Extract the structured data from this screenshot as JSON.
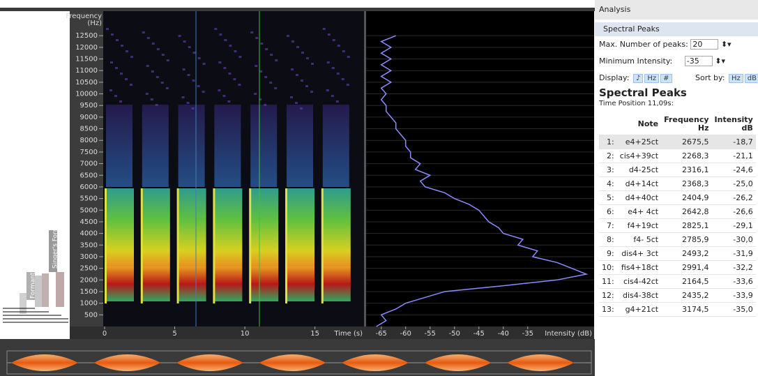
{
  "chart_data": [
    {
      "type": "spectrogram",
      "y_label": "Frequency",
      "y_unit": "(Hz)",
      "x_label": "Time (s)",
      "ylim": [
        0,
        13555
      ],
      "yticks": [
        500,
        1000,
        1500,
        2000,
        2500,
        3000,
        3500,
        4000,
        4500,
        5000,
        5500,
        6000,
        6500,
        7000,
        7500,
        8000,
        8500,
        9000,
        9500,
        10000,
        10500,
        11000,
        11500,
        12000,
        12500
      ],
      "xlim": [
        -0.1,
        18.5
      ],
      "xticks": [
        0,
        5,
        10,
        15
      ],
      "annotations": [
        "Singer's Formant",
        "Formant"
      ]
    },
    {
      "type": "line",
      "x_label": "Intensity (dB)",
      "orientation": "vertical",
      "xlim": [
        -68.1,
        -21.4
      ],
      "xticks": [
        -65,
        -60,
        -55,
        -50,
        -45,
        -40,
        -35
      ],
      "ylim": [
        0,
        13555
      ],
      "grid": true,
      "series": [
        {
          "color": "#8c8cff",
          "frequencies": [
            0,
            250,
            500,
            750,
            1000,
            1250,
            1500,
            1750,
            2000,
            2250,
            2500,
            2750,
            3000,
            3250,
            3500,
            3750,
            4000,
            4250,
            4500,
            4750,
            5000,
            5250,
            5500,
            5750,
            6000,
            6250,
            6500,
            6750,
            7000,
            7250,
            7500,
            7750,
            8000,
            8250,
            8500,
            8750,
            9000,
            9250,
            9500,
            9750,
            10000,
            10250,
            10500,
            10750,
            11000,
            11250,
            11500,
            11750,
            12000,
            12250,
            12500
          ],
          "values": [
            -66,
            -64,
            -65,
            -62,
            -60,
            -56,
            -52,
            -40,
            -29,
            -23,
            -26,
            -29,
            -34,
            -33,
            -37,
            -36,
            -40,
            -41,
            -43,
            -44,
            -45,
            -47,
            -50,
            -52,
            -56,
            -57,
            -55,
            -58,
            -57,
            -59,
            -59,
            -60,
            -60,
            -61,
            -62,
            -62,
            -63,
            -64,
            -64,
            -65,
            -64,
            -65,
            -63,
            -65,
            -63,
            -65,
            -63,
            -65,
            -63,
            -65,
            -62
          ]
        }
      ]
    }
  ],
  "panel": {
    "header": "Analysis",
    "tab": "Spectral Peaks",
    "max_peaks_label": "Max. Number of peaks:",
    "max_peaks": 20,
    "min_intensity_label": "Minimum Intensity:",
    "min_intensity": -35,
    "display_label": "Display:",
    "display_buttons": [
      "♪",
      "Hz",
      "#"
    ],
    "sort_label": "Sort by:",
    "sort_buttons": [
      "Hz",
      "dB"
    ],
    "title": "Spectral Peaks",
    "time_position": "Time Position 11,09s:",
    "columns": [
      {
        "name": "Note"
      },
      {
        "name": "Frequency",
        "unit": "Hz"
      },
      {
        "name": "Intensity",
        "unit": "dB"
      }
    ],
    "rows": [
      [
        "1:",
        "e4+25ct",
        "2675,5",
        "-18,7"
      ],
      [
        "2:",
        "cis4+39ct",
        "2268,3",
        "-21,1"
      ],
      [
        "3:",
        "d4-25ct",
        "2316,1",
        "-24,6"
      ],
      [
        "4:",
        "d4+14ct",
        "2368,3",
        "-25,0"
      ],
      [
        "5:",
        "d4+40ct",
        "2404,9",
        "-26,2"
      ],
      [
        "6:",
        "e4+ 4ct",
        "2642,8",
        "-26,6"
      ],
      [
        "7:",
        "f4+19ct",
        "2825,1",
        "-29,1"
      ],
      [
        "8:",
        "f4- 5ct",
        "2785,9",
        "-30,0"
      ],
      [
        "9:",
        "dis4+ 3ct",
        "2493,2",
        "-31,9"
      ],
      [
        "10:",
        "fis4+18ct",
        "2991,4",
        "-32,2"
      ],
      [
        "11:",
        "cis4-42ct",
        "2164,5",
        "-33,6"
      ],
      [
        "12:",
        "dis4-38ct",
        "2435,2",
        "-33,9"
      ],
      [
        "13:",
        "g4+21ct",
        "3174,5",
        "-35,0"
      ]
    ]
  }
}
